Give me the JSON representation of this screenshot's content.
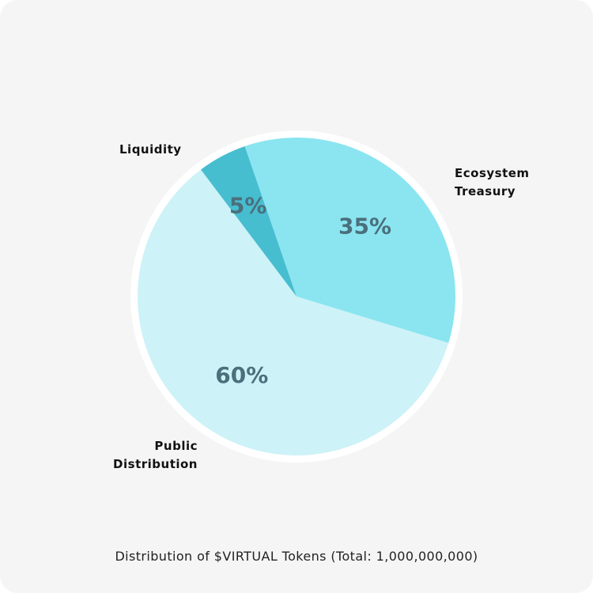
{
  "chart_data": {
    "type": "pie",
    "title": "",
    "caption": "Distribution of $VIRTUAL Tokens (Total: 1,000,000,000)",
    "slices": [
      {
        "label": "Ecosystem Treasury",
        "label_lines": [
          "Ecosystem",
          "Treasury"
        ],
        "value": 35,
        "value_label": "35%",
        "color": "#8ae5f0"
      },
      {
        "label": "Public Distribution",
        "label_lines": [
          "Public",
          "Distribution"
        ],
        "value": 60,
        "value_label": "60%",
        "color": "#cdf2f7"
      },
      {
        "label": "Liquidity",
        "label_lines": [
          "Liquidity"
        ],
        "value": 5,
        "value_label": "5%",
        "color": "#47bdd0"
      }
    ],
    "value_label_color": "#4b6f7c",
    "border_color": "#ffffff",
    "legend": "none"
  }
}
